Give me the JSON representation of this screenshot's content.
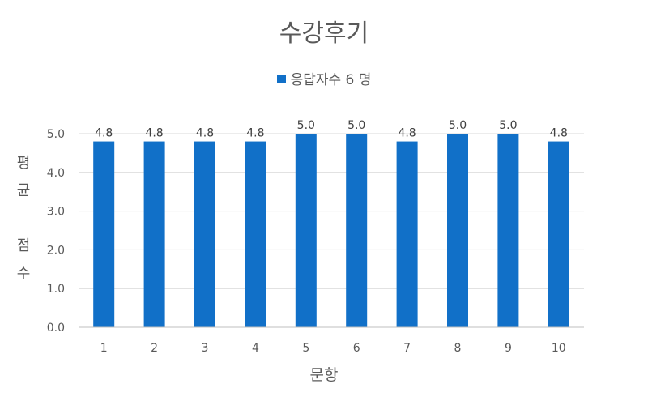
{
  "chart_data": {
    "type": "bar",
    "title": "수강후기",
    "legend": {
      "label": "응답자수 6 명",
      "position": "top"
    },
    "xlabel": "문항",
    "ylabel": "평균 점수",
    "ylabel_display": "평\n균\n\n점\n수",
    "categories": [
      "1",
      "2",
      "3",
      "4",
      "5",
      "6",
      "7",
      "8",
      "9",
      "10"
    ],
    "series": [
      {
        "values": [
          4.8,
          4.8,
          4.8,
          4.8,
          5.0,
          5.0,
          4.8,
          5.0,
          5.0,
          4.8
        ]
      }
    ],
    "data_labels": [
      "4.8",
      "4.8",
      "4.8",
      "4.8",
      "5.0",
      "5.0",
      "4.8",
      "5.0",
      "5.0",
      "4.8"
    ],
    "ylim": [
      0,
      5.0
    ],
    "yticks": [
      "0.0",
      "1.0",
      "2.0",
      "3.0",
      "4.0",
      "5.0"
    ],
    "grid": true,
    "colors": {
      "bar": "#1170C8",
      "grid": "#D9D9D9",
      "text": "#595959"
    }
  }
}
